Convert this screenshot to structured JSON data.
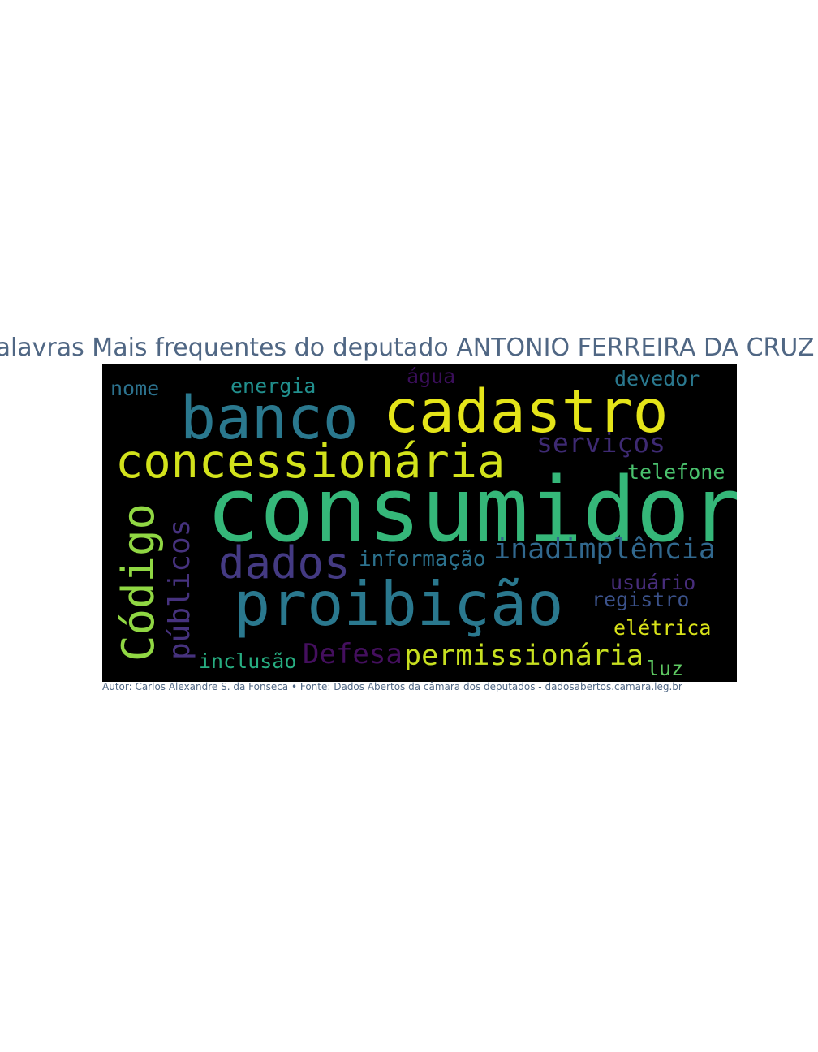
{
  "title": "Palavras Mais frequentes do deputado ANTONIO FERREIRA DA CRUZ F",
  "caption": "Autor: Carlos Alexandre S. da Fonseca • Fonte: Dados Abertos da câmara dos deputados - dadosabertos.camara.leg.br",
  "cloud": {
    "background": "#000000",
    "words": [
      {
        "text": "consumidor",
        "color": "#35b779",
        "orientation": "horizontal"
      },
      {
        "text": "cadastro",
        "color": "#e4e419",
        "orientation": "horizontal"
      },
      {
        "text": "banco",
        "color": "#2a788e",
        "orientation": "horizontal"
      },
      {
        "text": "proibição",
        "color": "#2a788e",
        "orientation": "horizontal"
      },
      {
        "text": "concessionária",
        "color": "#d2e21b",
        "orientation": "horizontal"
      },
      {
        "text": "Código",
        "color": "#90d743",
        "orientation": "vertical"
      },
      {
        "text": "dados",
        "color": "#443a83",
        "orientation": "horizontal"
      },
      {
        "text": "públicos",
        "color": "#46327e",
        "orientation": "vertical"
      },
      {
        "text": "inadimplência",
        "color": "#31688e",
        "orientation": "horizontal"
      },
      {
        "text": "serviços",
        "color": "#3e2a73",
        "orientation": "horizontal"
      },
      {
        "text": "Defesa",
        "color": "#440f5e",
        "orientation": "horizontal"
      },
      {
        "text": "permissionária",
        "color": "#c8e020",
        "orientation": "horizontal"
      },
      {
        "text": "informação",
        "color": "#2c728e",
        "orientation": "horizontal"
      },
      {
        "text": "energia",
        "color": "#218f8d",
        "orientation": "horizontal"
      },
      {
        "text": "nome",
        "color": "#2c728e",
        "orientation": "horizontal"
      },
      {
        "text": "água",
        "color": "#3a0e5a",
        "orientation": "horizontal"
      },
      {
        "text": "devedor",
        "color": "#2a788e",
        "orientation": "horizontal"
      },
      {
        "text": "telefone",
        "color": "#4ac16d",
        "orientation": "horizontal"
      },
      {
        "text": "usuário",
        "color": "#472d7b",
        "orientation": "horizontal"
      },
      {
        "text": "registro",
        "color": "#3b528b",
        "orientation": "horizontal"
      },
      {
        "text": "elétrica",
        "color": "#d8e219",
        "orientation": "horizontal"
      },
      {
        "text": "inclusão",
        "color": "#27ad81",
        "orientation": "horizontal"
      },
      {
        "text": "luz",
        "color": "#5ec962",
        "orientation": "horizontal"
      }
    ]
  }
}
